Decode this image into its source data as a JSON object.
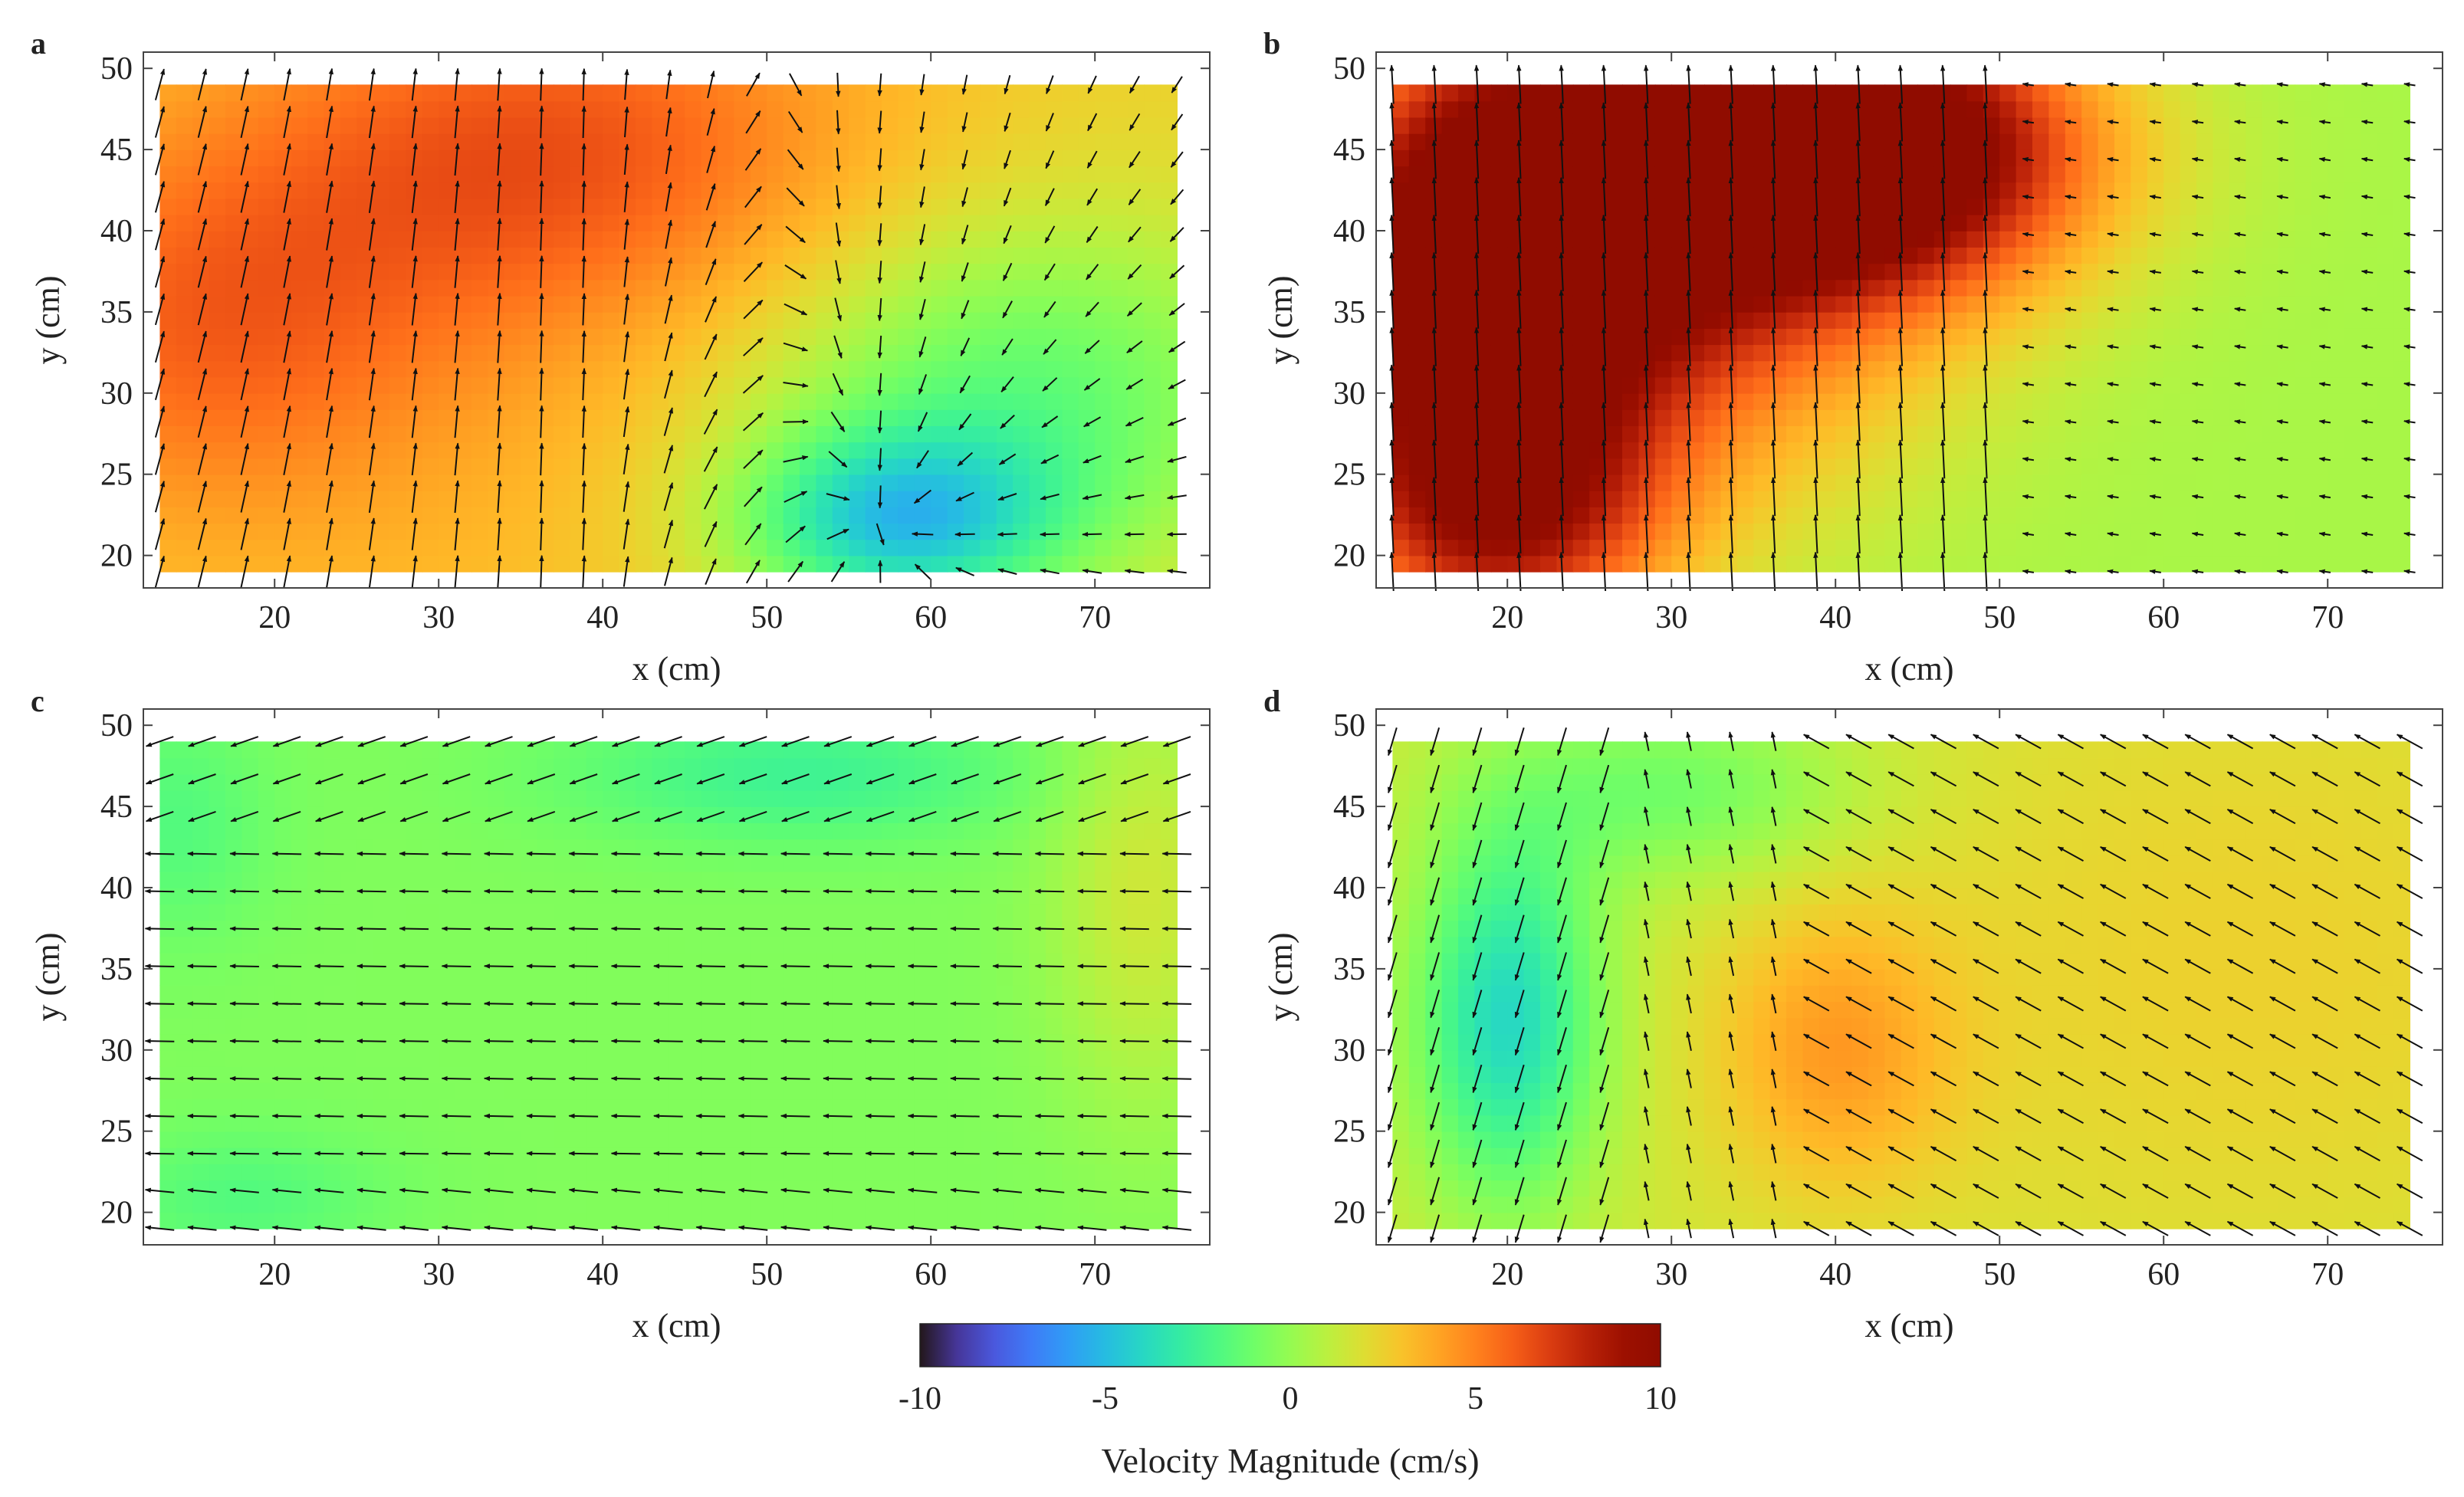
{
  "figure": {
    "colorbar": {
      "label": "Velocity Magnitude (cm/s)",
      "range": [
        -10,
        10
      ],
      "ticks": [
        -10,
        -5,
        0,
        5,
        10
      ],
      "tick_labels": [
        "-10",
        "-5",
        "0",
        "5",
        "10"
      ],
      "colormap": "turbo"
    }
  },
  "chart_data": [
    {
      "type": "heatmap",
      "panel_label": "a",
      "title": "",
      "xlabel": "x (cm)",
      "ylabel": "y (cm)",
      "xlim": [
        12,
        77
      ],
      "ylim": [
        18,
        51
      ],
      "xticks": [
        20,
        30,
        40,
        50,
        60,
        70
      ],
      "yticks": [
        20,
        25,
        30,
        35,
        40,
        45,
        50
      ],
      "field_extent": {
        "x": [
          13,
          75
        ],
        "y": [
          19,
          49
        ]
      },
      "grid": false,
      "field_description_values": {
        "blobs": [
          {
            "x": 37,
            "y": 45,
            "value": 6.0,
            "sx": 14,
            "sy": 8
          },
          {
            "x": 15,
            "y": 34,
            "value": 5.0,
            "sx": 10,
            "sy": 8
          },
          {
            "x": 28,
            "y": 30,
            "value": 3.5,
            "sx": 18,
            "sy": 14
          },
          {
            "x": 58,
            "y": 22,
            "value": -3.5,
            "sx": 7,
            "sy": 4
          },
          {
            "x": 65,
            "y": 30,
            "value": -1.5,
            "sx": 12,
            "sy": 8
          }
        ],
        "base": 2.5
      },
      "vectors": {
        "nx": 25,
        "ny": 14,
        "pattern": "upward-left region, converging toward (57,21) lower right"
      }
    },
    {
      "type": "heatmap",
      "panel_label": "b",
      "title": "",
      "xlabel": "x (cm)",
      "ylabel": "y (cm)",
      "xlim": [
        12,
        77
      ],
      "ylim": [
        18,
        51
      ],
      "xticks": [
        20,
        30,
        40,
        50,
        60,
        70
      ],
      "yticks": [
        20,
        25,
        30,
        35,
        40,
        45,
        50
      ],
      "field_extent": {
        "x": [
          13,
          75
        ],
        "y": [
          19,
          49
        ]
      },
      "grid": false,
      "field_description_values": {
        "blobs": [
          {
            "x": 35,
            "y": 45,
            "value": 9.5,
            "sx": 12,
            "sy": 6
          },
          {
            "x": 18,
            "y": 34,
            "value": 9.0,
            "sx": 7,
            "sy": 10
          },
          {
            "x": 28,
            "y": 38,
            "value": 7.0,
            "sx": 12,
            "sy": 10
          },
          {
            "x": 45,
            "y": 45,
            "value": 5.0,
            "sx": 8,
            "sy": 6
          },
          {
            "x": 20,
            "y": 22,
            "value": 5.0,
            "sx": 7,
            "sy": 5
          }
        ],
        "base": 0.5
      },
      "vectors": {
        "nx": 25,
        "ny": 14,
        "pattern": "strong upward flow on the left, weak leftward flow on the right"
      }
    },
    {
      "type": "heatmap",
      "panel_label": "c",
      "title": "",
      "xlabel": "x (cm)",
      "ylabel": "y (cm)",
      "xlim": [
        12,
        77
      ],
      "ylim": [
        18,
        51
      ],
      "xticks": [
        20,
        30,
        40,
        50,
        60,
        70
      ],
      "yticks": [
        20,
        25,
        30,
        35,
        40,
        45,
        50
      ],
      "field_extent": {
        "x": [
          13,
          75
        ],
        "y": [
          19,
          49
        ]
      },
      "grid": false,
      "field_description_values": {
        "blobs": [
          {
            "x": 52,
            "y": 47,
            "value": -2.5,
            "sx": 10,
            "sy": 3
          },
          {
            "x": 14,
            "y": 44,
            "value": -1.8,
            "sx": 4,
            "sy": 5
          },
          {
            "x": 18,
            "y": 21,
            "value": -1.8,
            "sx": 6,
            "sy": 3
          },
          {
            "x": 73,
            "y": 40,
            "value": 1.5,
            "sx": 4,
            "sy": 10
          }
        ],
        "base": -0.5
      },
      "vectors": {
        "nx": 25,
        "ny": 14,
        "pattern": "predominantly leftward horizontal flow"
      }
    },
    {
      "type": "heatmap",
      "panel_label": "d",
      "title": "",
      "xlabel": "x (cm)",
      "ylabel": "y (cm)",
      "xlim": [
        12,
        77
      ],
      "ylim": [
        18,
        51
      ],
      "xticks": [
        20,
        30,
        40,
        50,
        60,
        70
      ],
      "yticks": [
        20,
        25,
        30,
        35,
        40,
        45,
        50
      ],
      "field_extent": {
        "x": [
          13,
          75
        ],
        "y": [
          19,
          49
        ]
      },
      "grid": false,
      "field_description_values": {
        "blobs": [
          {
            "x": 20,
            "y": 32,
            "value": -4.0,
            "sx": 4,
            "sy": 8
          },
          {
            "x": 40,
            "y": 30,
            "value": 4.0,
            "sx": 5,
            "sy": 6
          },
          {
            "x": 65,
            "y": 35,
            "value": 2.5,
            "sx": 18,
            "sy": 14
          },
          {
            "x": 30,
            "y": 46,
            "value": -1.0,
            "sx": 8,
            "sy": 4
          }
        ],
        "base": 1.5
      },
      "vectors": {
        "nx": 25,
        "ny": 14,
        "pattern": "downward on left, up-left diagonal flow on the right"
      }
    }
  ]
}
